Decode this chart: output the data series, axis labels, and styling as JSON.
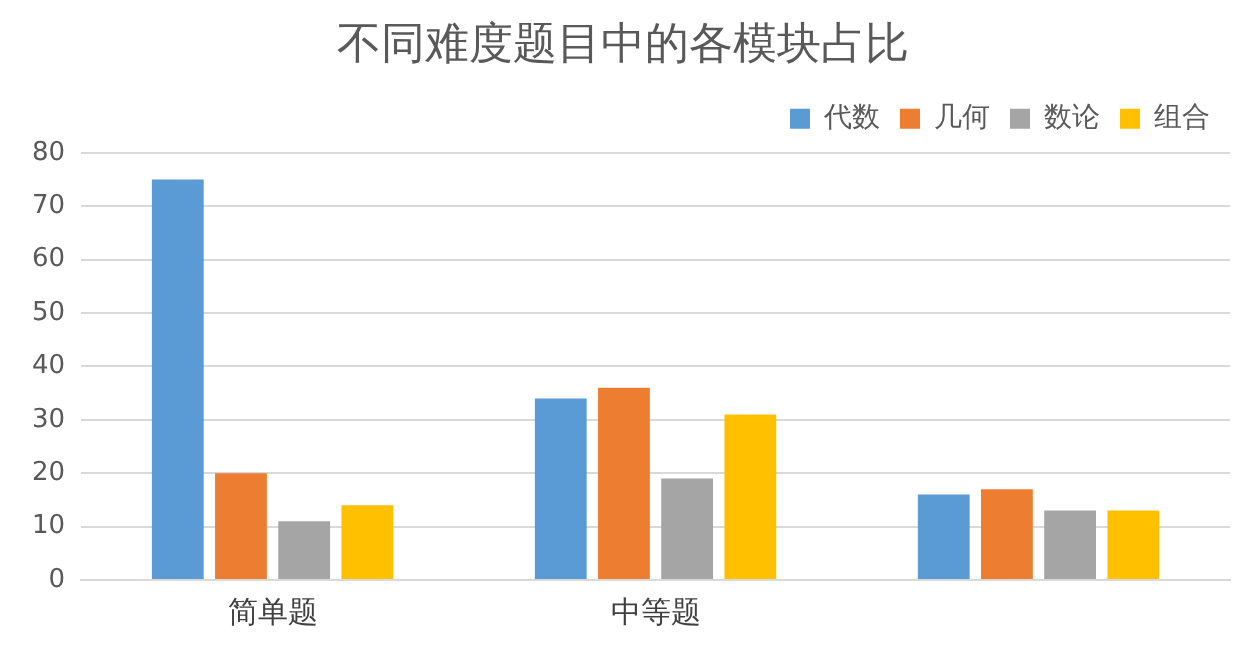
{
  "chart_data": {
    "type": "bar",
    "title": "不同难度题目中的各模块占比",
    "categories": [
      "简单题",
      "中等题",
      null
    ],
    "series": [
      {
        "name": "代数",
        "color": "#5b9bd5",
        "values": [
          75,
          34,
          16
        ]
      },
      {
        "name": "几何",
        "color": "#ed7d31",
        "values": [
          20,
          36,
          17
        ]
      },
      {
        "name": "数论",
        "color": "#a5a5a5",
        "values": [
          11,
          19,
          13
        ]
      },
      {
        "name": "组合",
        "color": "#ffc000",
        "values": [
          14,
          31,
          13
        ]
      }
    ],
    "ylim": [
      0,
      80
    ],
    "yticks": [
      0,
      10,
      20,
      30,
      40,
      50,
      60,
      70,
      80
    ],
    "grid": "y",
    "legend": "top right"
  }
}
